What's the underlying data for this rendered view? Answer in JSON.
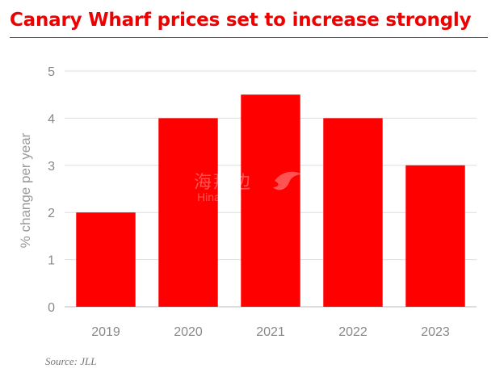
{
  "accent_color": "#ee0000",
  "chart_data": {
    "type": "bar",
    "title": "Canary Wharf prices set to increase strongly",
    "ylabel": "% change per year",
    "xlabel": "",
    "categories": [
      "2019",
      "2020",
      "2021",
      "2022",
      "2023"
    ],
    "values": [
      2.0,
      4.0,
      4.5,
      4.0,
      3.0
    ],
    "ylim": [
      0,
      5
    ],
    "yticks": [
      "0",
      "1",
      "2",
      "3",
      "4",
      "5"
    ],
    "grid": true,
    "bar_color": "#ff0000"
  },
  "source": "Source: JLL",
  "watermark": {
    "chinese": "海那边",
    "pinyin": "Hinabian"
  }
}
